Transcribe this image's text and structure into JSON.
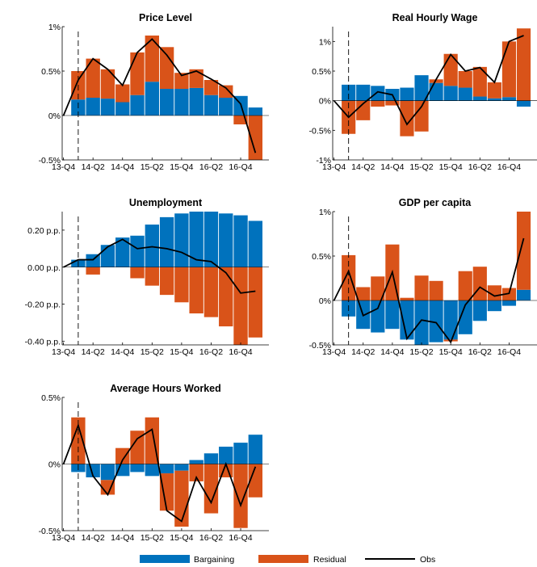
{
  "colors": {
    "bargaining": "#0072BD",
    "residual": "#D95319",
    "obs": "#000000"
  },
  "legend": {
    "items": [
      "Bargaining",
      "Residual",
      "Obs"
    ]
  },
  "chart_data": [
    {
      "type": "bar",
      "title": "Price Level",
      "categories": [
        "13-Q4",
        "14-Q1",
        "14-Q2",
        "14-Q3",
        "14-Q4",
        "15-Q1",
        "15-Q2",
        "15-Q3",
        "15-Q4",
        "16-Q1",
        "16-Q2",
        "16-Q3",
        "16-Q4",
        "17-Q1"
      ],
      "xtick_labels": [
        "13-Q4",
        "14-Q2",
        "14-Q4",
        "15-Q2",
        "15-Q4",
        "16-Q2",
        "16-Q4"
      ],
      "ylim": [
        -0.5,
        1
      ],
      "yticks": [
        -0.5,
        0,
        0.5,
        1
      ],
      "ytick_labels": [
        "-0.5%",
        "0%",
        "0.5%",
        "1%"
      ],
      "series": [
        {
          "name": "Bargaining",
          "values": [
            0,
            0.18,
            0.2,
            0.19,
            0.15,
            0.23,
            0.38,
            0.3,
            0.3,
            0.31,
            0.23,
            0.2,
            0.22,
            0.09
          ]
        },
        {
          "name": "Residual",
          "values": [
            0,
            0.32,
            0.44,
            0.33,
            0.2,
            0.48,
            0.52,
            0.47,
            0.18,
            0.21,
            0.17,
            0.14,
            -0.1,
            -0.52
          ]
        },
        {
          "name": "Obs",
          "values": [
            0,
            0.4,
            0.64,
            0.52,
            0.34,
            0.71,
            0.86,
            0.68,
            0.45,
            0.5,
            0.41,
            0.31,
            0.13,
            -0.42
          ]
        }
      ]
    },
    {
      "type": "bar",
      "title": "Real Hourly Wage",
      "categories": [
        "13-Q4",
        "14-Q1",
        "14-Q2",
        "14-Q3",
        "14-Q4",
        "15-Q1",
        "15-Q2",
        "15-Q3",
        "15-Q4",
        "16-Q1",
        "16-Q2",
        "16-Q3",
        "16-Q4",
        "17-Q1"
      ],
      "xtick_labels": [
        "13-Q4",
        "14-Q2",
        "14-Q4",
        "15-Q2",
        "15-Q4",
        "16-Q2",
        "16-Q4"
      ],
      "ylim": [
        -1,
        1.25
      ],
      "yticks": [
        -1,
        -0.5,
        0,
        0.5,
        1
      ],
      "ytick_labels": [
        "-1%",
        "-0.5%",
        "0%",
        "0.5%",
        "1%"
      ],
      "series": [
        {
          "name": "Bargaining",
          "values": [
            0,
            0.27,
            0.27,
            0.25,
            0.2,
            0.22,
            0.43,
            0.3,
            0.25,
            0.22,
            0.07,
            0.04,
            0.06,
            -0.1
          ]
        },
        {
          "name": "Residual",
          "values": [
            0,
            -0.56,
            -0.33,
            -0.1,
            -0.08,
            -0.6,
            -0.52,
            0.06,
            0.54,
            0.28,
            0.5,
            0.27,
            0.94,
            1.22
          ]
        },
        {
          "name": "Obs",
          "values": [
            0,
            -0.28,
            -0.05,
            0.15,
            0.1,
            -0.4,
            -0.1,
            0.36,
            0.78,
            0.5,
            0.56,
            0.31,
            1.0,
            1.1
          ]
        }
      ]
    },
    {
      "type": "bar",
      "title": "Unemployment",
      "categories": [
        "13-Q4",
        "14-Q1",
        "14-Q2",
        "14-Q3",
        "14-Q4",
        "15-Q1",
        "15-Q2",
        "15-Q3",
        "15-Q4",
        "16-Q1",
        "16-Q2",
        "16-Q3",
        "16-Q4",
        "17-Q1"
      ],
      "xtick_labels": [
        "13-Q4",
        "14-Q2",
        "14-Q4",
        "15-Q2",
        "15-Q4",
        "16-Q2",
        "16-Q4"
      ],
      "ylim": [
        -0.42,
        0.3
      ],
      "yticks": [
        -0.4,
        -0.2,
        0,
        0.2
      ],
      "ytick_labels": [
        "-0.40 p.p.",
        "-0.20 p.p.",
        "0.00 p.p.",
        "0.20 p.p."
      ],
      "series": [
        {
          "name": "Bargaining",
          "values": [
            0,
            0.04,
            0.07,
            0.12,
            0.16,
            0.17,
            0.23,
            0.27,
            0.29,
            0.3,
            0.3,
            0.29,
            0.28,
            0.25
          ]
        },
        {
          "name": "Residual",
          "values": [
            0,
            0,
            -0.04,
            0,
            0,
            -0.06,
            -0.1,
            -0.15,
            -0.19,
            -0.25,
            -0.27,
            -0.32,
            -0.42,
            -0.38
          ]
        },
        {
          "name": "Obs",
          "values": [
            0,
            0.04,
            0.04,
            0.11,
            0.15,
            0.1,
            0.11,
            0.1,
            0.08,
            0.04,
            0.03,
            -0.03,
            -0.14,
            -0.13
          ]
        }
      ]
    },
    {
      "type": "bar",
      "title": "GDP per capita",
      "categories": [
        "13-Q4",
        "14-Q1",
        "14-Q2",
        "14-Q3",
        "14-Q4",
        "15-Q1",
        "15-Q2",
        "15-Q3",
        "15-Q4",
        "16-Q1",
        "16-Q2",
        "16-Q3",
        "16-Q4",
        "17-Q1"
      ],
      "xtick_labels": [
        "13-Q4",
        "14-Q2",
        "14-Q4",
        "15-Q2",
        "15-Q4",
        "16-Q2",
        "16-Q4"
      ],
      "ylim": [
        -0.5,
        1
      ],
      "yticks": [
        -0.5,
        0,
        0.5,
        1
      ],
      "ytick_labels": [
        "-0.5%",
        "0%",
        "0.5%",
        "1%"
      ],
      "series": [
        {
          "name": "Bargaining",
          "values": [
            0,
            -0.18,
            -0.32,
            -0.36,
            -0.32,
            -0.44,
            -0.5,
            -0.47,
            -0.44,
            -0.38,
            -0.23,
            -0.12,
            -0.06,
            0.12
          ]
        },
        {
          "name": "Residual",
          "values": [
            0,
            0.51,
            0.15,
            0.27,
            0.63,
            0.03,
            0.28,
            0.22,
            -0.02,
            0.33,
            0.38,
            0.17,
            0.14,
            0.9
          ]
        },
        {
          "name": "Obs",
          "values": [
            0,
            0.33,
            -0.17,
            -0.09,
            0.32,
            -0.43,
            -0.22,
            -0.25,
            -0.47,
            -0.05,
            0.15,
            0.05,
            0.08,
            0.7
          ]
        }
      ]
    },
    {
      "type": "bar",
      "title": "Average Hours Worked",
      "categories": [
        "13-Q4",
        "14-Q1",
        "14-Q2",
        "14-Q3",
        "14-Q4",
        "15-Q1",
        "15-Q2",
        "15-Q3",
        "15-Q4",
        "16-Q1",
        "16-Q2",
        "16-Q3",
        "16-Q4",
        "17-Q1"
      ],
      "xtick_labels": [
        "13-Q4",
        "14-Q2",
        "14-Q4",
        "15-Q2",
        "15-Q4",
        "16-Q2",
        "16-Q4"
      ],
      "ylim": [
        -0.5,
        0.5
      ],
      "yticks": [
        -0.5,
        0,
        0.5
      ],
      "ytick_labels": [
        "-0.5%",
        "0%",
        "0.5%"
      ],
      "series": [
        {
          "name": "Bargaining",
          "values": [
            0,
            -0.06,
            -0.1,
            -0.12,
            -0.09,
            -0.06,
            -0.09,
            -0.07,
            -0.05,
            0.03,
            0.08,
            0.13,
            0.16,
            0.22
          ]
        },
        {
          "name": "Residual",
          "values": [
            0,
            0.35,
            0.0,
            -0.11,
            0.12,
            0.25,
            0.35,
            -0.28,
            -0.42,
            -0.13,
            -0.37,
            -0.1,
            -0.48,
            -0.25
          ]
        },
        {
          "name": "Obs",
          "values": [
            0,
            0.29,
            -0.09,
            -0.23,
            0.03,
            0.19,
            0.26,
            -0.35,
            -0.43,
            -0.1,
            -0.29,
            0.0,
            -0.31,
            -0.02
          ]
        }
      ]
    }
  ]
}
